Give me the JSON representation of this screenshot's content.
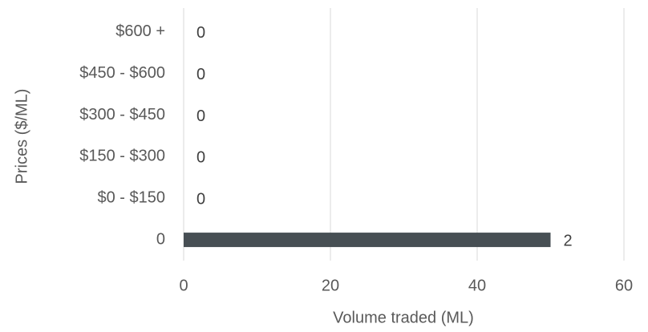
{
  "chart_data": {
    "type": "barh",
    "xlabel": "Volume traded (ML)",
    "ylabel": "Prices ($/ML)",
    "categories": [
      "$600 +",
      "$450 - $600",
      "$300 - $450",
      "$150 - $300",
      "$0 - $150",
      "0"
    ],
    "values": [
      0,
      0,
      0,
      0,
      0,
      50
    ],
    "trades": [
      0,
      0,
      0,
      0,
      0,
      2
    ],
    "color": "#474f54",
    "xlim": [
      0,
      60
    ],
    "xticks": [
      0,
      20,
      40,
      60
    ],
    "grid": true
  }
}
